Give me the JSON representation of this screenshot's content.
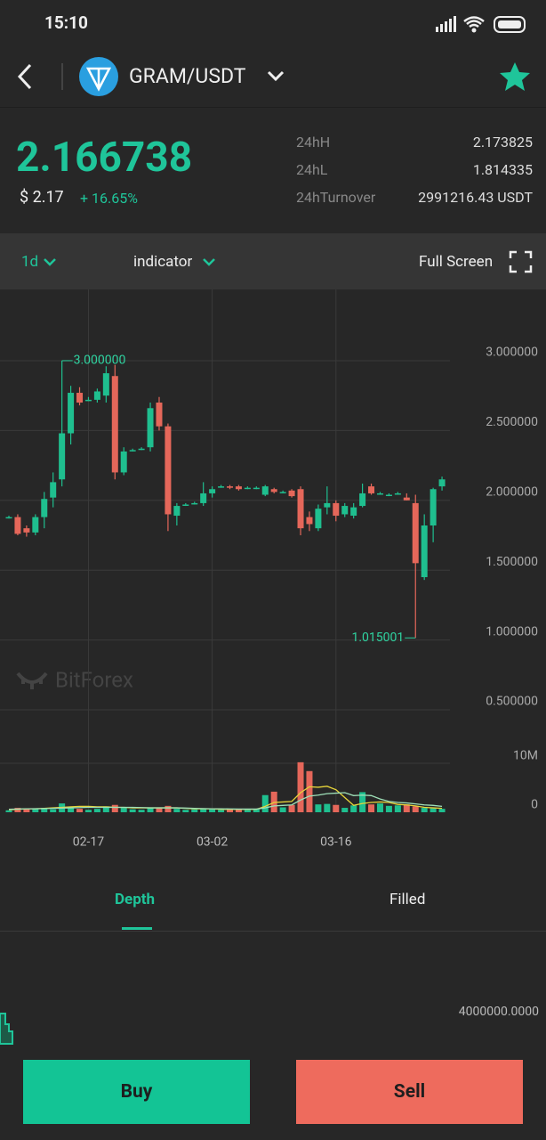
{
  "status": {
    "time": "15:10"
  },
  "header": {
    "pair": "GRAM/USDT"
  },
  "ticker": {
    "price": "2.166738",
    "usd": "$ 2.17",
    "change": "+ 16.65%",
    "stats": [
      {
        "label": "24hH",
        "value": "2.173825"
      },
      {
        "label": "24hL",
        "value": "1.814335"
      },
      {
        "label": "24hTurnover",
        "value": "2991216.43 USDT"
      }
    ]
  },
  "toolbar": {
    "interval": "1d",
    "indicator": "indicator",
    "fullscreen": "Full Screen"
  },
  "watermark": "BitForex",
  "chart_data": {
    "type": "candlestick",
    "up_color": "#1fbf8f",
    "down_color": "#e5675a",
    "grid": true,
    "categories": [
      null,
      null,
      null,
      null,
      null,
      null,
      null,
      null,
      null,
      "02-17",
      null,
      null,
      null,
      null,
      null,
      null,
      null,
      null,
      null,
      null,
      null,
      null,
      null,
      "03-02",
      null,
      null,
      null,
      null,
      null,
      null,
      null,
      null,
      null,
      null,
      null,
      null,
      null,
      "03-16",
      null,
      null,
      null,
      null,
      null,
      null,
      null,
      null,
      null,
      null,
      null,
      null
    ],
    "open": [
      1.88,
      1.88,
      1.8,
      1.77,
      1.88,
      2.02,
      2.15,
      2.48,
      2.77,
      2.72,
      2.72,
      2.75,
      2.89,
      2.2,
      2.36,
      2.37,
      2.38,
      2.7,
      2.53,
      1.89,
      1.97,
      1.98,
      1.98,
      2.05,
      2.1,
      2.1,
      2.1,
      2.09,
      2.09,
      2.04,
      2.08,
      2.06,
      2.07,
      2.08,
      1.88,
      1.8,
      1.95,
      1.98,
      1.9,
      1.89,
      1.96,
      2.1,
      2.05,
      2.04,
      2.05,
      2.02,
      1.98,
      1.45,
      1.82,
      2.1
    ],
    "high": [
      1.89,
      1.9,
      1.82,
      1.9,
      2.06,
      2.2,
      3.0,
      2.82,
      2.81,
      2.74,
      2.8,
      2.96,
      2.97,
      2.38,
      2.37,
      2.38,
      2.7,
      2.74,
      2.55,
      1.98,
      1.98,
      1.99,
      2.13,
      2.1,
      2.11,
      2.11,
      2.11,
      2.1,
      2.1,
      2.11,
      2.09,
      2.07,
      2.08,
      2.1,
      1.92,
      1.97,
      2.1,
      2.0,
      1.98,
      1.98,
      2.12,
      2.12,
      2.06,
      2.05,
      2.06,
      2.05,
      2.04,
      1.9,
      2.09,
      2.17
    ],
    "low": [
      1.87,
      1.75,
      1.74,
      1.75,
      1.8,
      1.95,
      2.1,
      2.4,
      2.68,
      2.71,
      2.7,
      2.7,
      2.15,
      2.18,
      2.35,
      2.36,
      2.35,
      2.5,
      1.78,
      1.82,
      1.96,
      1.97,
      1.96,
      2.02,
      2.09,
      2.08,
      2.07,
      2.08,
      2.08,
      2.03,
      2.05,
      2.05,
      2.02,
      1.75,
      1.78,
      1.78,
      1.9,
      1.85,
      1.88,
      1.87,
      1.95,
      2.04,
      2.04,
      2.03,
      2.04,
      2.0,
      1.015001,
      1.43,
      1.7,
      2.07
    ],
    "close": [
      1.88,
      1.76,
      1.77,
      1.88,
      2.01,
      2.13,
      2.48,
      2.77,
      2.7,
      2.72,
      2.78,
      2.91,
      2.2,
      2.35,
      2.36,
      2.37,
      2.66,
      2.53,
      1.9,
      1.96,
      1.97,
      1.98,
      2.05,
      2.08,
      2.1,
      2.09,
      2.08,
      2.09,
      2.09,
      2.1,
      2.06,
      2.06,
      2.03,
      1.8,
      1.83,
      1.94,
      1.98,
      1.89,
      1.96,
      1.95,
      2.05,
      2.05,
      2.05,
      2.04,
      2.05,
      2.0,
      1.55,
      1.82,
      2.08,
      2.15
    ],
    "ylim": [
      0.5,
      3.51
    ],
    "yticks": [
      {
        "value": 0.5,
        "label": "0.500000"
      },
      {
        "value": 1.0,
        "label": "1.000000"
      },
      {
        "value": 1.5,
        "label": "1.500000"
      },
      {
        "value": 2.0,
        "label": "2.000000"
      },
      {
        "value": 2.5,
        "label": "2.500000"
      },
      {
        "value": 3.0,
        "label": "3.000000"
      }
    ],
    "annotations": [
      {
        "text": "3.000000",
        "value": 3.0
      },
      {
        "text": "1.015001",
        "value": 1.015001
      }
    ],
    "volume": {
      "ylim": [
        0,
        20900000
      ],
      "yticks": [
        0,
        {
          "value": 10000000,
          "label": "10M"
        }
      ],
      "values": [
        400000,
        900000,
        700000,
        800000,
        900000,
        600000,
        1800000,
        900000,
        700000,
        500000,
        700000,
        1200000,
        1500000,
        900000,
        600000,
        500000,
        900000,
        800000,
        1300000,
        700000,
        500000,
        600000,
        700000,
        600000,
        500000,
        600000,
        700000,
        500000,
        600000,
        3500000,
        4200000,
        1000000,
        1500000,
        10200000,
        8400000,
        1600000,
        1700000,
        1500000,
        900000,
        1400000,
        4100000,
        1600000,
        1800000,
        1300000,
        1400000,
        1600000,
        1200000,
        900000,
        800000,
        700000
      ],
      "series": [
        {
          "color": "#e6d43a",
          "values": [
            500000,
            600000,
            700000,
            700000,
            800000,
            900000,
            1000000,
            1100000,
            1200000,
            1200000,
            1100000,
            1100000,
            1000000,
            1000000,
            900000,
            900000,
            900000,
            900000,
            900000,
            900000,
            800000,
            700000,
            700000,
            700000,
            600000,
            600000,
            600000,
            600000,
            600000,
            1200000,
            2000000,
            2100000,
            2200000,
            4000000,
            5200000,
            5100000,
            5300000,
            4600000,
            3000000,
            1400000,
            1800000,
            2000000,
            2100000,
            2000000,
            1600000,
            1500000,
            1300000,
            1000000,
            900000,
            800000
          ]
        },
        {
          "color": "#9fe0b8",
          "values": [
            600000,
            650000,
            700000,
            720000,
            750000,
            800000,
            850000,
            900000,
            950000,
            1000000,
            1000000,
            1000000,
            1000000,
            1000000,
            1000000,
            950000,
            900000,
            900000,
            900000,
            900000,
            850000,
            800000,
            750000,
            700000,
            700000,
            680000,
            650000,
            650000,
            650000,
            900000,
            1300000,
            1400000,
            1500000,
            2500000,
            3300000,
            3500000,
            3800000,
            3900000,
            4000000,
            3400000,
            3500000,
            3400000,
            2700000,
            2200000,
            2000000,
            1900000,
            1700000,
            1500000,
            1400000,
            1200000
          ]
        }
      ]
    }
  },
  "tabs": [
    "Depth",
    "Filled"
  ],
  "depth": {
    "axis_label": "4000000.0000"
  },
  "actions": {
    "buy": "Buy",
    "sell": "Sell"
  }
}
